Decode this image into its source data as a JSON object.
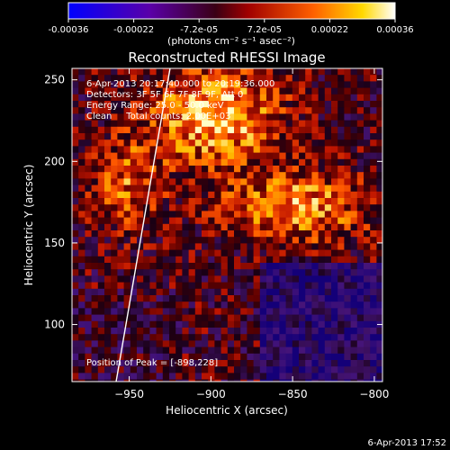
{
  "colorbar": {
    "tick_labels": [
      "-0.00036",
      "-0.00022",
      "-7.2e-05",
      "7.2e-05",
      "0.00022",
      "0.00036"
    ],
    "unit_label": "(photons cm⁻² s⁻¹ asec⁻²)",
    "range": [
      -0.00036,
      0.00036
    ]
  },
  "chart_data": {
    "type": "heatmap",
    "title": "Reconstructed RHESSI Image",
    "xlabel": "Heliocentric X (arcsec)",
    "ylabel": "Heliocentric Y (arcsec)",
    "xlim": [
      -985,
      -795
    ],
    "ylim": [
      65,
      257
    ],
    "x_ticks": [
      -950,
      -900,
      -850,
      -800
    ],
    "y_ticks": [
      100,
      150,
      200,
      250
    ],
    "annotations": [
      "6-Apr-2013 20:17:40.000 to 20:19:36.000",
      "Detectors: 3F 5F 6F 7F 8F 9F, Att 0",
      "Energy Range: 25.0 - 50.0 keV",
      "Clean     Total counts: 2.00E+03"
    ],
    "peak_label": "Position of Peak = [-898,228]",
    "peak": [
      -898,
      228
    ],
    "limb_line": [
      [
        -958,
        65
      ],
      [
        -925,
        257
      ]
    ],
    "grid": false,
    "colormap": "blue-purple-red-yellow-white"
  },
  "footer": {
    "timestamp": "6-Apr-2013 17:52"
  }
}
